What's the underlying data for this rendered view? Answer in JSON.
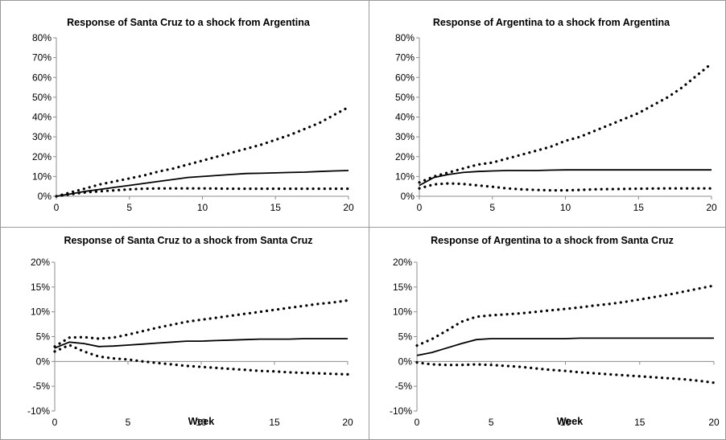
{
  "colors": {
    "line": "#000000",
    "frame": "#9a9a9a",
    "axis": "#8c8c8c"
  },
  "chart_data": [
    {
      "type": "line",
      "title": "Response of Santa Cruz to a shock from Argentina",
      "xlabel": "",
      "ylabel": "",
      "xlim": [
        0,
        20
      ],
      "ylim": [
        0,
        0.8
      ],
      "x_ticks": [
        0,
        5,
        10,
        15,
        20
      ],
      "y_ticks": [
        0,
        0.1,
        0.2,
        0.3,
        0.4,
        0.5,
        0.6,
        0.7,
        0.8
      ],
      "y_tick_labels": [
        "0%",
        "10%",
        "20%",
        "30%",
        "40%",
        "50%",
        "60%",
        "70%",
        "80%"
      ],
      "x": [
        0,
        1,
        2,
        3,
        4,
        5,
        6,
        7,
        8,
        9,
        10,
        11,
        12,
        13,
        14,
        15,
        16,
        17,
        18,
        19,
        20
      ],
      "series": [
        {
          "style": "dotted",
          "values": [
            0.0,
            0.02,
            0.04,
            0.06,
            0.075,
            0.09,
            0.105,
            0.125,
            0.14,
            0.16,
            0.18,
            0.2,
            0.22,
            0.24,
            0.26,
            0.285,
            0.31,
            0.34,
            0.37,
            0.41,
            0.45
          ]
        },
        {
          "style": "solid",
          "values": [
            0.0,
            0.012,
            0.025,
            0.035,
            0.045,
            0.055,
            0.065,
            0.075,
            0.085,
            0.095,
            0.1,
            0.105,
            0.11,
            0.115,
            0.116,
            0.118,
            0.12,
            0.122,
            0.125,
            0.128,
            0.13
          ]
        },
        {
          "style": "dotted",
          "values": [
            0.0,
            0.01,
            0.02,
            0.025,
            0.03,
            0.035,
            0.038,
            0.04,
            0.04,
            0.04,
            0.04,
            0.039,
            0.038,
            0.038,
            0.038,
            0.038,
            0.038,
            0.038,
            0.038,
            0.038,
            0.038
          ]
        }
      ]
    },
    {
      "type": "line",
      "title": "Response of Argentina  to a shock from Argentina",
      "xlabel": "",
      "ylabel": "",
      "xlim": [
        0,
        20
      ],
      "ylim": [
        0,
        0.8
      ],
      "x_ticks": [
        0,
        5,
        10,
        15,
        20
      ],
      "y_ticks": [
        0,
        0.1,
        0.2,
        0.3,
        0.4,
        0.5,
        0.6,
        0.7,
        0.8
      ],
      "y_tick_labels": [
        "0%",
        "10%",
        "20%",
        "30%",
        "40%",
        "50%",
        "60%",
        "70%",
        "80%"
      ],
      "x": [
        0,
        1,
        2,
        3,
        4,
        5,
        6,
        7,
        8,
        9,
        10,
        11,
        12,
        13,
        14,
        15,
        16,
        17,
        18,
        19,
        20
      ],
      "series": [
        {
          "style": "dotted",
          "values": [
            0.07,
            0.1,
            0.12,
            0.14,
            0.16,
            0.17,
            0.19,
            0.21,
            0.23,
            0.25,
            0.28,
            0.3,
            0.33,
            0.36,
            0.39,
            0.42,
            0.46,
            0.5,
            0.55,
            0.61,
            0.67
          ]
        },
        {
          "style": "solid",
          "values": [
            0.055,
            0.095,
            0.11,
            0.12,
            0.125,
            0.128,
            0.13,
            0.13,
            0.13,
            0.132,
            0.133,
            0.133,
            0.133,
            0.133,
            0.133,
            0.133,
            0.133,
            0.133,
            0.133,
            0.133,
            0.133
          ]
        },
        {
          "style": "dotted",
          "values": [
            0.04,
            0.06,
            0.065,
            0.062,
            0.055,
            0.048,
            0.04,
            0.035,
            0.032,
            0.03,
            0.03,
            0.032,
            0.035,
            0.036,
            0.037,
            0.038,
            0.039,
            0.04,
            0.04,
            0.04,
            0.04
          ]
        }
      ]
    },
    {
      "type": "line",
      "title": "Response of Santa Cruz to a shock from Santa Cruz",
      "xlabel": "Week",
      "ylabel": "",
      "xlim": [
        0,
        20
      ],
      "ylim": [
        -0.1,
        0.2
      ],
      "x_ticks": [
        0,
        5,
        10,
        15,
        20
      ],
      "y_ticks": [
        -0.1,
        -0.05,
        0,
        0.05,
        0.1,
        0.15,
        0.2
      ],
      "y_tick_labels": [
        "-10%",
        "-5%",
        "0%",
        "5%",
        "10%",
        "15%",
        "20%"
      ],
      "x": [
        0,
        1,
        2,
        3,
        4,
        5,
        6,
        7,
        8,
        9,
        10,
        11,
        12,
        13,
        14,
        15,
        16,
        17,
        18,
        19,
        20
      ],
      "series": [
        {
          "style": "dotted",
          "values": [
            0.03,
            0.048,
            0.049,
            0.046,
            0.048,
            0.054,
            0.061,
            0.068,
            0.074,
            0.08,
            0.084,
            0.088,
            0.092,
            0.096,
            0.1,
            0.104,
            0.108,
            0.112,
            0.116,
            0.119,
            0.123
          ]
        },
        {
          "style": "solid",
          "values": [
            0.027,
            0.039,
            0.036,
            0.03,
            0.031,
            0.033,
            0.035,
            0.037,
            0.039,
            0.041,
            0.041,
            0.042,
            0.043,
            0.044,
            0.045,
            0.045,
            0.045,
            0.046,
            0.046,
            0.046,
            0.046
          ]
        },
        {
          "style": "dotted",
          "values": [
            0.02,
            0.033,
            0.02,
            0.01,
            0.006,
            0.004,
            0.0,
            -0.003,
            -0.006,
            -0.009,
            -0.011,
            -0.013,
            -0.015,
            -0.017,
            -0.019,
            -0.02,
            -0.022,
            -0.023,
            -0.024,
            -0.025,
            -0.026
          ]
        }
      ]
    },
    {
      "type": "line",
      "title": "Response of Argentina  to a shock from Santa Cruz",
      "xlabel": "Week",
      "ylabel": "",
      "xlim": [
        0,
        20
      ],
      "ylim": [
        -0.1,
        0.2
      ],
      "x_ticks": [
        0,
        5,
        10,
        15,
        20
      ],
      "y_ticks": [
        -0.1,
        -0.05,
        0,
        0.05,
        0.1,
        0.15,
        0.2
      ],
      "y_tick_labels": [
        "-10%",
        "-5%",
        "0%",
        "5%",
        "10%",
        "15%",
        "20%"
      ],
      "x": [
        0,
        1,
        2,
        3,
        4,
        5,
        6,
        7,
        8,
        9,
        10,
        11,
        12,
        13,
        14,
        15,
        16,
        17,
        18,
        19,
        20
      ],
      "series": [
        {
          "style": "dotted",
          "values": [
            0.032,
            0.045,
            0.062,
            0.08,
            0.09,
            0.093,
            0.095,
            0.097,
            0.1,
            0.103,
            0.106,
            0.109,
            0.113,
            0.116,
            0.12,
            0.125,
            0.13,
            0.135,
            0.141,
            0.147,
            0.153
          ]
        },
        {
          "style": "solid",
          "values": [
            0.012,
            0.018,
            0.027,
            0.036,
            0.044,
            0.046,
            0.046,
            0.046,
            0.046,
            0.046,
            0.046,
            0.047,
            0.047,
            0.047,
            0.047,
            0.047,
            0.047,
            0.047,
            0.047,
            0.047,
            0.047
          ]
        },
        {
          "style": "dotted",
          "values": [
            -0.002,
            -0.006,
            -0.007,
            -0.007,
            -0.006,
            -0.007,
            -0.009,
            -0.011,
            -0.014,
            -0.017,
            -0.019,
            -0.022,
            -0.024,
            -0.026,
            -0.028,
            -0.03,
            -0.032,
            -0.034,
            -0.036,
            -0.039,
            -0.043
          ]
        }
      ]
    }
  ]
}
